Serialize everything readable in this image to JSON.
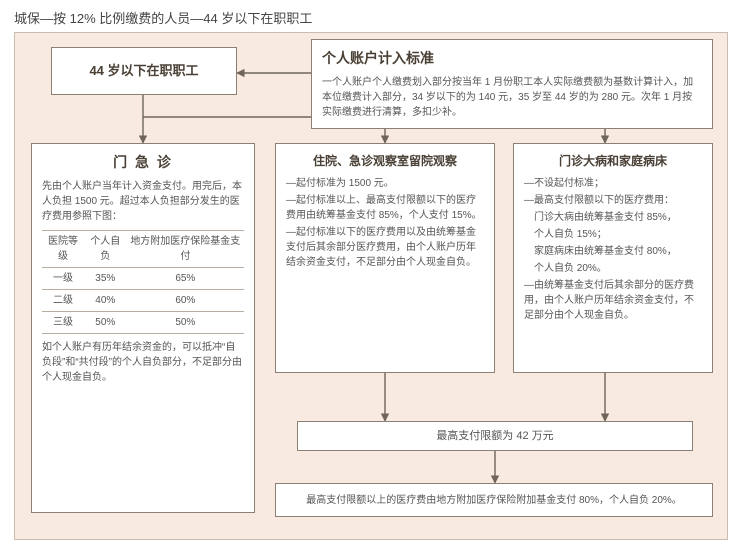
{
  "page": {
    "title": "城保—按 12% 比例缴费的人员—44 岁以下在职职工"
  },
  "diagram": {
    "background_color": "#f8e9e1",
    "box_border_color": "#8a8074",
    "line_color": "#6f6558",
    "text_color": "#555555"
  },
  "nodes": {
    "category": {
      "title": "44 岁以下在职职工"
    },
    "standard": {
      "title": "个人账户计入标准",
      "body": "一个人账户个人缴费划入部分按当年 1 月份职工本人实际缴费额为基数计算计入，加本位缴费计入部分，34 岁以下的为 140 元，35 岁至 44 岁的为 280 元。次年 1 月按实际缴费进行清算，多扣少补。"
    },
    "outpatient": {
      "title": "门 急 诊",
      "intro": "先由个人账户当年计入资金支付。用完后，本人负担 1500 元。超过本人负担部分发生的医疗费用参照下图：",
      "table": {
        "columns": [
          "医院等级",
          "个人自负",
          "地方附加医疗保险基金支付"
        ],
        "rows": [
          [
            "一级",
            "35%",
            "65%"
          ],
          [
            "二级",
            "40%",
            "60%"
          ],
          [
            "三级",
            "50%",
            "50%"
          ]
        ]
      },
      "footnote": "如个人账户有历年结余资金的，可以抵冲“自负段”和“共付段”的个人自负部分，不足部分由个人现金自负。"
    },
    "inpatient": {
      "title": "住院、急诊观察室留院观察",
      "bullets": [
        "—起付标准为 1500 元。",
        "—起付标准以上、最高支付限额以下的医疗费用由统筹基金支付 85%，个人支付 15%。",
        "—起付标准以下的医疗费用以及由统筹基金支付后其余部分医疗费用，由个人账户历年结余资金支付，不足部分由个人现金自负。"
      ]
    },
    "chronic": {
      "title": "门诊大病和家庭病床",
      "bullets": [
        "—不设起付标准；",
        "—最高支付限额以下的医疗费用：",
        "　门诊大病由统筹基金支付 85%，",
        "　个人自负 15%；",
        "　家庭病床由统筹基金支付 80%，",
        "　个人自负 20%。",
        "—由统筹基金支付后其余部分的医疗费用，由个人账户历年结余资金支付，不足部分由个人现金自负。"
      ]
    },
    "cap": {
      "text": "最高支付限额为 42 万元"
    },
    "above_cap": {
      "text": "最高支付限额以上的医疗费由地方附加医疗保险附加基金支付 80%，个人自负 20%。"
    }
  }
}
